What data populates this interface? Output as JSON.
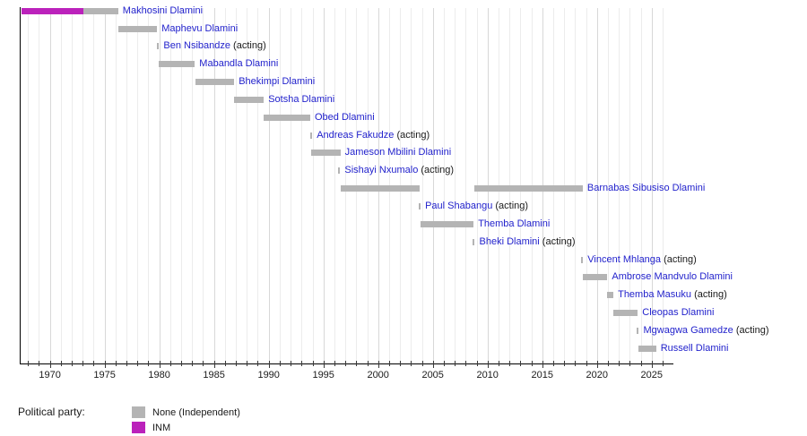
{
  "chart_data": {
    "type": "bar",
    "subtype": "timeline-gantt",
    "title": "",
    "acting_label": "(acting)",
    "x_axis": {
      "min": 1967.25,
      "max": 2026.9,
      "major_ticks": [
        1970,
        1975,
        1980,
        1985,
        1990,
        1995,
        2000,
        2005,
        2010,
        2015,
        2020,
        2025
      ],
      "minor_tick_interval": 1,
      "grid": true
    },
    "parties": {
      "None": "#b4b4b4",
      "INM": "#bb22bb"
    },
    "rows": [
      {
        "label": "Makhosini Dlamini",
        "acting": false,
        "segments": [
          {
            "start": 1967.4,
            "end": 1973.05,
            "party": "INM"
          },
          {
            "start": 1973.05,
            "end": 1976.25,
            "party": "None"
          }
        ]
      },
      {
        "label": "Maphevu Dlamini",
        "acting": false,
        "segments": [
          {
            "start": 1976.25,
            "end": 1979.8,
            "party": "None"
          }
        ]
      },
      {
        "label": "Ben Nsibandze",
        "acting": true,
        "segments": [
          {
            "start": 1979.8,
            "end": 1979.95,
            "party": "None"
          }
        ]
      },
      {
        "label": "Mabandla Dlamini",
        "acting": false,
        "segments": [
          {
            "start": 1979.95,
            "end": 1983.25,
            "party": "None"
          }
        ]
      },
      {
        "label": "Bhekimpi Dlamini",
        "acting": false,
        "segments": [
          {
            "start": 1983.3,
            "end": 1986.85,
            "party": "None"
          }
        ]
      },
      {
        "label": "Sotsha Dlamini",
        "acting": false,
        "segments": [
          {
            "start": 1986.85,
            "end": 1989.55,
            "party": "None"
          }
        ]
      },
      {
        "label": "Obed Dlamini",
        "acting": false,
        "segments": [
          {
            "start": 1989.55,
            "end": 1993.8,
            "party": "None"
          }
        ]
      },
      {
        "label": "Andreas Fakudze",
        "acting": true,
        "segments": [
          {
            "start": 1993.8,
            "end": 1993.95,
            "party": "None"
          }
        ]
      },
      {
        "label": "Jameson Mbilini Dlamini",
        "acting": false,
        "segments": [
          {
            "start": 1993.9,
            "end": 1996.55,
            "party": "None"
          }
        ]
      },
      {
        "label": "Sishayi Nxumalo",
        "acting": true,
        "segments": [
          {
            "start": 1996.35,
            "end": 1996.5,
            "party": "None"
          }
        ]
      },
      {
        "label": "Barnabas Sibusiso Dlamini",
        "acting": false,
        "segments": [
          {
            "start": 1996.55,
            "end": 2003.78,
            "party": "None"
          },
          {
            "start": 2008.8,
            "end": 2018.7,
            "party": "None"
          }
        ]
      },
      {
        "label": "Paul Shabangu",
        "acting": true,
        "segments": [
          {
            "start": 2003.7,
            "end": 2003.85,
            "party": "None"
          }
        ]
      },
      {
        "label": "Themba Dlamini",
        "acting": false,
        "segments": [
          {
            "start": 2003.9,
            "end": 2008.73,
            "party": "None"
          }
        ]
      },
      {
        "label": "Bheki Dlamini",
        "acting": true,
        "segments": [
          {
            "start": 2008.65,
            "end": 2008.8,
            "party": "None"
          }
        ]
      },
      {
        "label": "Vincent Mhlanga",
        "acting": true,
        "segments": [
          {
            "start": 2018.55,
            "end": 2018.7,
            "party": "None"
          }
        ]
      },
      {
        "label": "Ambrose Mandvulo Dlamini",
        "acting": false,
        "segments": [
          {
            "start": 2018.7,
            "end": 2020.95,
            "party": "None"
          }
        ]
      },
      {
        "label": "Themba Masuku",
        "acting": true,
        "segments": [
          {
            "start": 2020.9,
            "end": 2021.5,
            "party": "None"
          }
        ]
      },
      {
        "label": "Cleopas Dlamini",
        "acting": false,
        "segments": [
          {
            "start": 2021.45,
            "end": 2023.73,
            "party": "None"
          }
        ]
      },
      {
        "label": "Mgwagwa Gamedze",
        "acting": true,
        "segments": [
          {
            "start": 2023.65,
            "end": 2023.8,
            "party": "None"
          }
        ]
      },
      {
        "label": "Russell Dlamini",
        "acting": false,
        "segments": [
          {
            "start": 2023.8,
            "end": 2025.4,
            "party": "None"
          }
        ]
      }
    ],
    "legend": {
      "title": "Political party:",
      "entries": [
        {
          "label": "None (Independent)",
          "color": "#b4b4b4"
        },
        {
          "label": "INM",
          "color": "#bb22bb"
        }
      ]
    }
  }
}
